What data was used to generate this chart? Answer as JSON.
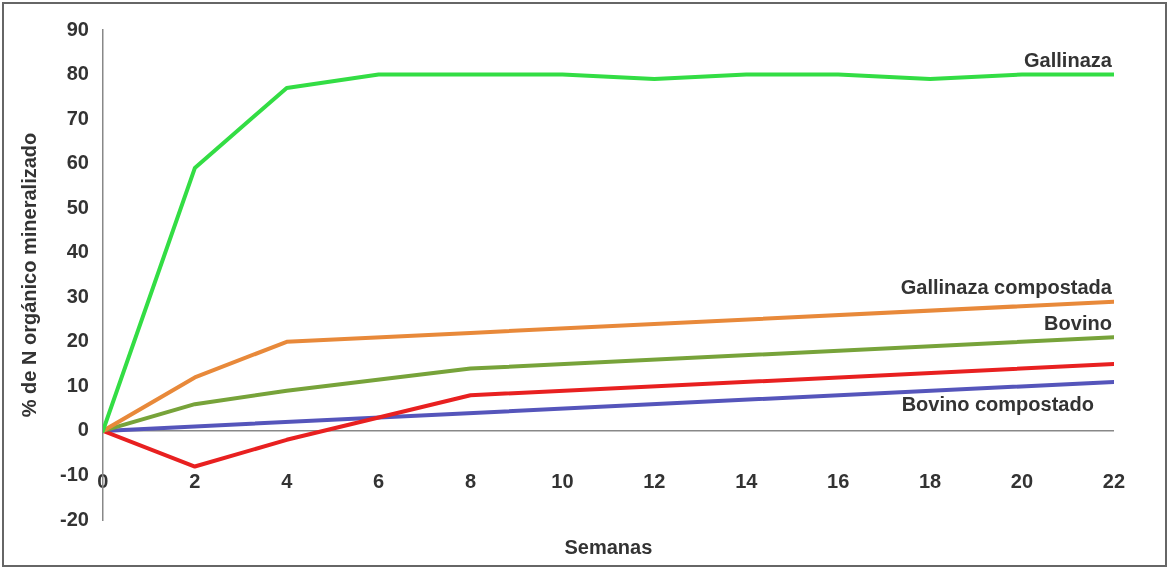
{
  "chart_data": {
    "type": "line",
    "xlabel": "Semanas",
    "ylabel": "% de N orgánico mineralizado",
    "xlim": [
      0,
      22
    ],
    "xticks": [
      0,
      2,
      4,
      6,
      8,
      10,
      12,
      14,
      16,
      18,
      20,
      22
    ],
    "ylim": [
      -20,
      90
    ],
    "yticks": [
      -20,
      -10,
      0,
      10,
      20,
      30,
      40,
      50,
      60,
      70,
      80,
      90
    ],
    "grid": false,
    "legend": false,
    "marker": "none",
    "series": [
      {
        "name": "Gallinaza",
        "color": "#33dd44",
        "x": [
          0,
          2,
          4,
          6,
          8,
          10,
          12,
          14,
          16,
          18,
          20,
          22
        ],
        "values": [
          0,
          59,
          77,
          80,
          80,
          80,
          79,
          80,
          80,
          79,
          80,
          80
        ]
      },
      {
        "name": "Gallinaza compostada",
        "color": "#e8893a",
        "x": [
          0,
          2,
          4,
          8,
          22
        ],
        "values": [
          0,
          12,
          20,
          22,
          29
        ]
      },
      {
        "name": "Bovino",
        "color": "#77a33a",
        "x": [
          0,
          2,
          4,
          8,
          22
        ],
        "values": [
          0,
          6,
          9,
          14,
          21
        ]
      },
      {
        "color": "#e82020",
        "x": [
          0,
          2,
          4,
          6,
          8,
          22
        ],
        "values": [
          0,
          -8,
          -2,
          3,
          8,
          15
        ]
      },
      {
        "name": "Bovino compostado",
        "color": "#5555bb",
        "x": [
          0,
          22
        ],
        "values": [
          0,
          11
        ]
      }
    ]
  }
}
